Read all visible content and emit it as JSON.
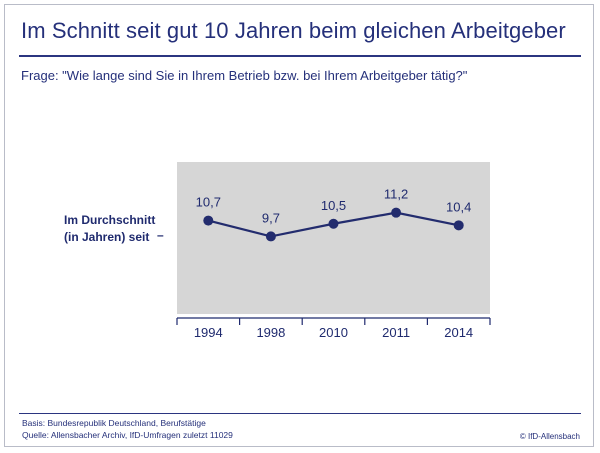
{
  "header": {
    "title": "Im Schnitt seit gut 10 Jahren beim gleichen Arbeitgeber",
    "question": "Frage: \"Wie lange sind Sie in Ihrem Betrieb bzw. bei Ihrem Arbeitgeber tätig?\""
  },
  "ylabel": {
    "line1": "Im Durchschnitt",
    "line2": "(in Jahren) seit",
    "dash": "–"
  },
  "chart_data": {
    "type": "line",
    "title": "Im Schnitt seit gut 10 Jahren beim gleichen Arbeitgeber",
    "ylabel": "Im Durchschnitt (in Jahren) seit",
    "categories": [
      "1994",
      "1998",
      "2010",
      "2011",
      "2014"
    ],
    "series": [
      {
        "values": [
          10.7,
          9.7,
          10.5,
          11.2,
          10.4
        ],
        "labels": [
          "10,7",
          "9,7",
          "10,5",
          "11,2",
          "10,4"
        ]
      }
    ],
    "ylim": [
      4.8,
      14.4
    ],
    "grid": false,
    "colors": {
      "line": "#232c6e",
      "background": "#d6d6d6",
      "axis": "#1f2a6e"
    }
  },
  "footer": {
    "basis": "Basis: Bundesrepublik Deutschland, Berufstätige",
    "source": "Quelle: Allensbacher Archiv, IfD-Umfragen zuletzt 11029",
    "copyright": "© IfD-Allensbach"
  }
}
